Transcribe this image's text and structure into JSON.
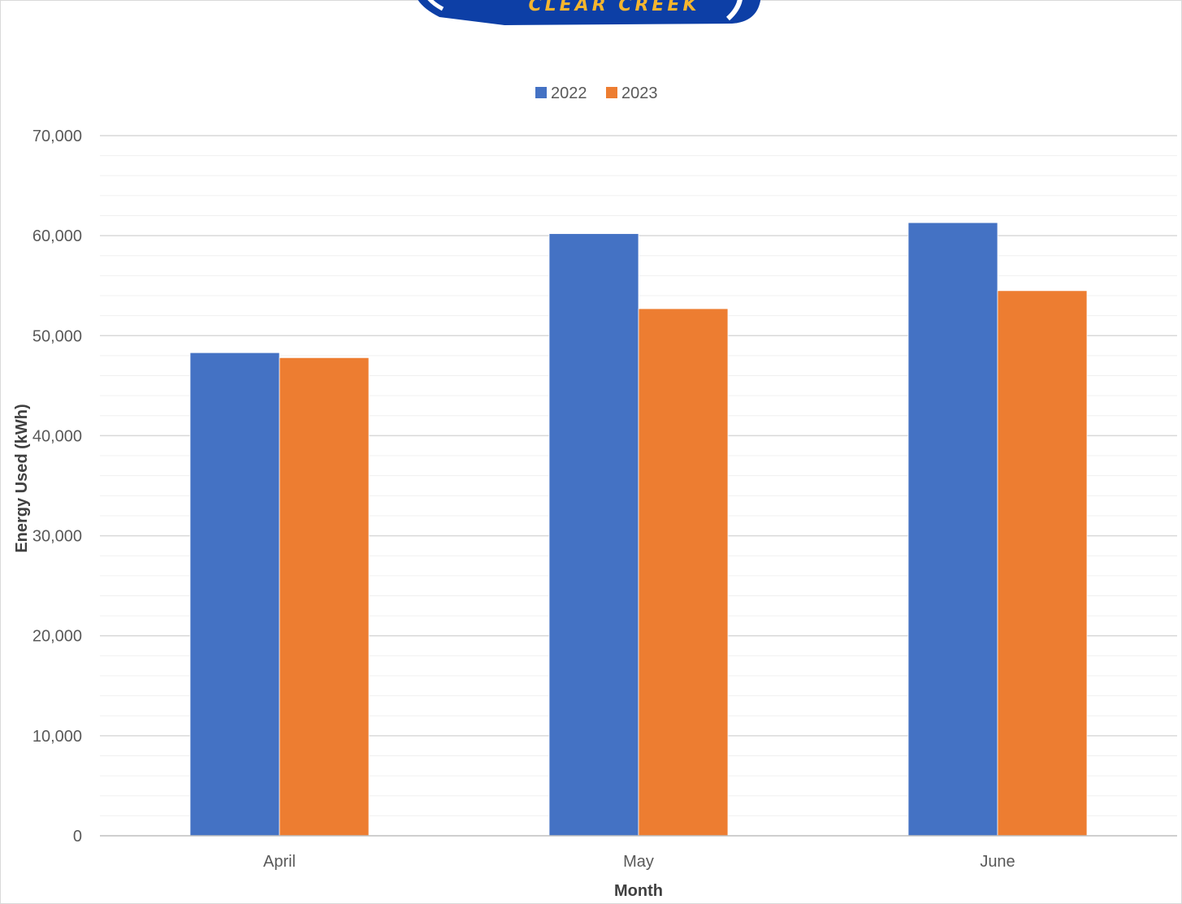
{
  "logo": {
    "text": "CLEAR CREEK",
    "colors": {
      "badge": "#0d3fa6",
      "text": "#f5b52e"
    }
  },
  "chart_data": {
    "type": "bar",
    "title": "",
    "categories": [
      "April",
      "May",
      "June"
    ],
    "series": [
      {
        "name": "2022",
        "values": [
          48300,
          60200,
          61300
        ],
        "color": "#4472c4"
      },
      {
        "name": "2023",
        "values": [
          47800,
          52700,
          54500
        ],
        "color": "#ed7d31"
      }
    ],
    "xlabel": "Month",
    "ylabel": "Energy Used (kWh)",
    "ylim": [
      0,
      70000
    ],
    "yticks": [
      0,
      10000,
      20000,
      30000,
      40000,
      50000,
      60000,
      70000
    ],
    "ytick_labels": [
      "0",
      "10,000",
      "20,000",
      "30,000",
      "40,000",
      "50,000",
      "60,000",
      "70,000"
    ],
    "grid": true,
    "minor_grid": true,
    "legend_position": "top-center"
  }
}
